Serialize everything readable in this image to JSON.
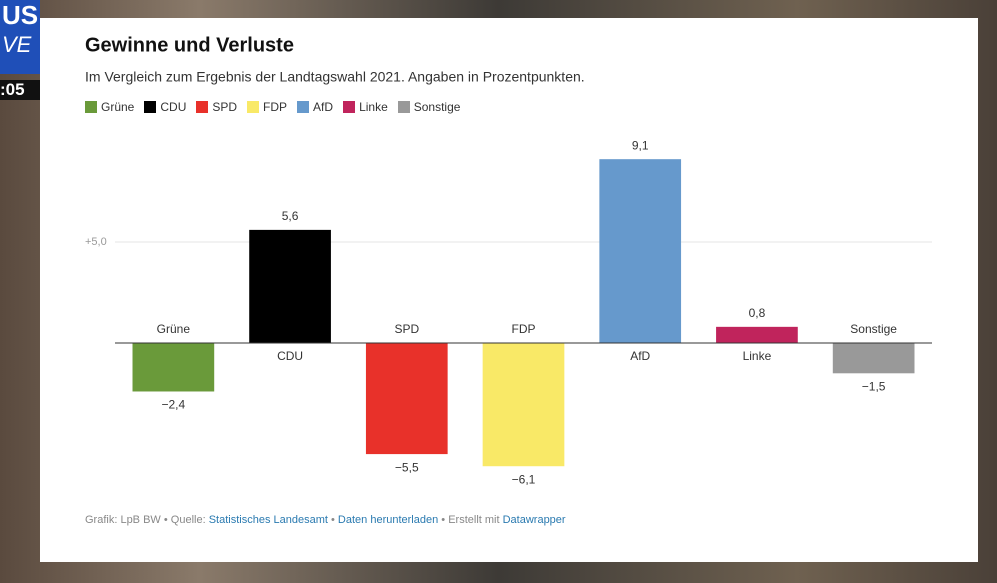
{
  "broadcast": {
    "logo_top": "US",
    "logo_bottom": "VE",
    "clock": ":05"
  },
  "chart_data": {
    "type": "bar",
    "title": "Gewinne und Verluste",
    "subtitle": "Im Vergleich zum Ergebnis der Landtagswahl 2021. Angaben in Prozentpunkten.",
    "categories": [
      "Grüne",
      "CDU",
      "SPD",
      "FDP",
      "AfD",
      "Linke",
      "Sonstige"
    ],
    "values": [
      -2.4,
      5.6,
      -5.5,
      -6.1,
      9.1,
      0.8,
      -1.5
    ],
    "value_labels": [
      "−2,4",
      "5,6",
      "−5,5",
      "−6,1",
      "9,1",
      "0,8",
      "−1,5"
    ],
    "colors": [
      "#6a9a3a",
      "#000000",
      "#e8312a",
      "#f9e967",
      "#6699cc",
      "#c0245c",
      "#999999"
    ],
    "ylim": [
      -7,
      10
    ],
    "yticks": [
      {
        "value": 5,
        "label": "+5,0"
      }
    ],
    "grid": true,
    "footer": {
      "credit": "Grafik: LpB BW",
      "separator": "•",
      "source_label": "Quelle:",
      "source": "Statistisches Landesamt",
      "download": "Daten herunterladen",
      "made_with_label": "Erstellt mit",
      "tool": "Datawrapper"
    }
  }
}
